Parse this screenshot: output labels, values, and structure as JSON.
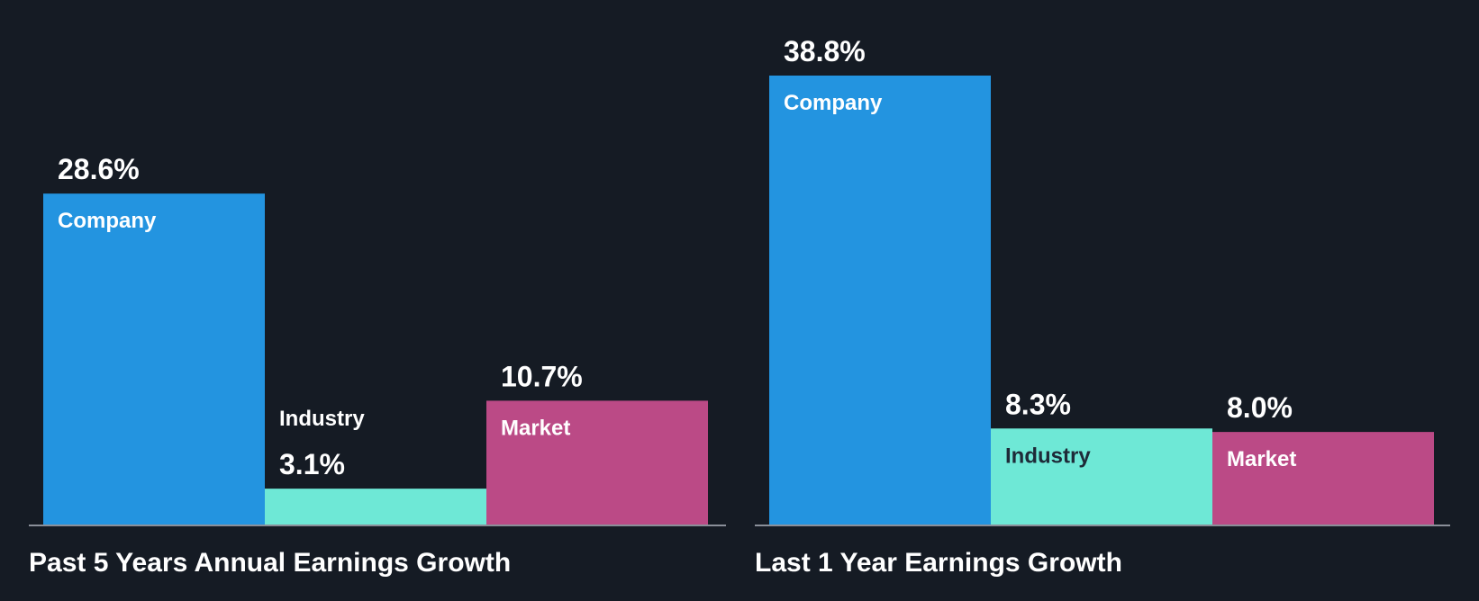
{
  "chart_data": [
    {
      "type": "bar",
      "title": "Past 5 Years Annual Earnings Growth",
      "categories": [
        "Company",
        "Industry",
        "Market"
      ],
      "values": [
        28.6,
        3.1,
        10.7
      ],
      "value_labels": [
        "28.6%",
        "3.1%",
        "10.7%"
      ],
      "ylim": [
        0,
        38.8
      ],
      "grid": false
    },
    {
      "type": "bar",
      "title": "Last 1 Year Earnings Growth",
      "categories": [
        "Company",
        "Industry",
        "Market"
      ],
      "values": [
        38.8,
        8.3,
        8.0
      ],
      "value_labels": [
        "38.8%",
        "8.3%",
        "8.0%"
      ],
      "ylim": [
        0,
        38.8
      ],
      "grid": false
    }
  ],
  "colors": {
    "background": "#151b24",
    "company": "#2394e0",
    "industry": "#6ee8d6",
    "market": "#bb4a86",
    "baseline": "#8a8f99",
    "light_text": "#ffffff",
    "dark_text": "#1e2a38"
  }
}
